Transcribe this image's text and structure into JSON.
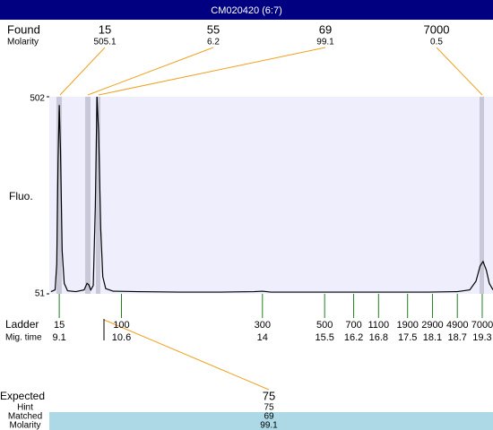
{
  "header": {
    "title": "CM020420 (6:7)"
  },
  "found": {
    "label": "Found",
    "sub_label": "Molarity",
    "peaks": [
      {
        "size": 15,
        "molarity": 505.1
      },
      {
        "size": 55,
        "molarity": 6.2
      },
      {
        "size": 69,
        "molarity": 99.1
      },
      {
        "size": 7000,
        "molarity": 0.5
      }
    ]
  },
  "ladder": {
    "label": "Ladder",
    "sub_label": "Mig. time",
    "sizes": [
      15,
      100,
      300,
      500,
      700,
      1100,
      1900,
      2900,
      4900,
      7000
    ],
    "mig_times": [
      9.1,
      10.6,
      14,
      15.5,
      16.2,
      16.8,
      17.5,
      18.1,
      18.7,
      19.3
    ]
  },
  "expected": {
    "label": "Expected",
    "value": 75,
    "rows": [
      {
        "label": "Hint",
        "value": 75
      },
      {
        "label": "Matched",
        "value": 69
      },
      {
        "label": "Molarity",
        "value": 99.1
      }
    ]
  },
  "chart_data": {
    "type": "line",
    "y_label": "Fluo.",
    "x": [
      8.9,
      9.0,
      9.04,
      9.07,
      9.1,
      9.13,
      9.17,
      9.22,
      9.3,
      9.5,
      9.7,
      9.77,
      9.81,
      9.86,
      9.92,
      9.97,
      10.01,
      10.05,
      10.1,
      10.15,
      10.22,
      10.4,
      11,
      12,
      13,
      13.8,
      14,
      14.2,
      15,
      16,
      17,
      18,
      18.7,
      19.0,
      19.15,
      19.25,
      19.32,
      19.4,
      19.47,
      19.56
    ],
    "series": [
      {
        "color": "#000000",
        "values": [
          56,
          60,
          120,
          350,
          483,
          380,
          150,
          75,
          58,
          56,
          60,
          75,
          72,
          60,
          70,
          250,
          502,
          420,
          200,
          90,
          63,
          57,
          56,
          55,
          55,
          56,
          57,
          55,
          55,
          55,
          55,
          55,
          56,
          60,
          80,
          115,
          125,
          105,
          75,
          60
        ]
      }
    ],
    "xlim": [
      8.86,
      19.56
    ],
    "ylim": [
      51,
      502
    ],
    "yticks": [
      51,
      502
    ]
  }
}
